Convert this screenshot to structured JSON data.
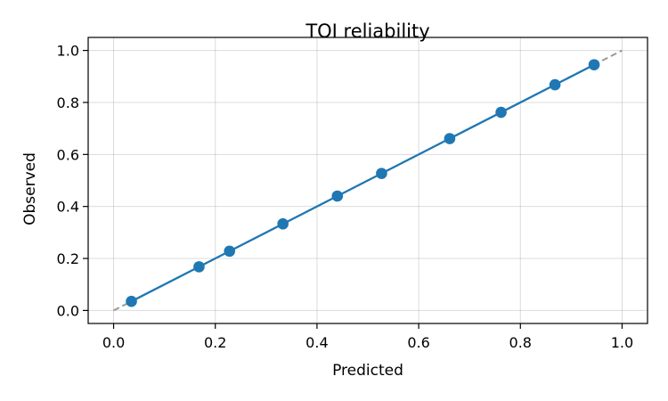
{
  "chart_data": {
    "type": "line",
    "title": "TOI reliability",
    "xlabel": "Predicted",
    "ylabel": "Observed",
    "xlim": [
      -0.05,
      1.05
    ],
    "ylim": [
      -0.05,
      1.05
    ],
    "xticks": [
      0.0,
      0.2,
      0.4,
      0.6,
      0.8,
      1.0
    ],
    "yticks": [
      0.0,
      0.2,
      0.4,
      0.6,
      0.8,
      1.0
    ],
    "xtick_labels": [
      "0.0",
      "0.2",
      "0.4",
      "0.6",
      "0.8",
      "1.0"
    ],
    "ytick_labels": [
      "0.0",
      "0.2",
      "0.4",
      "0.6",
      "0.8",
      "1.0"
    ],
    "grid": true,
    "reference_line": {
      "x": [
        0,
        1
      ],
      "y": [
        0,
        1
      ],
      "style": "dashed",
      "color": "#999999"
    },
    "series": [
      {
        "color": "#1f77b4",
        "marker": "circle",
        "x": [
          0.035,
          0.168,
          0.228,
          0.333,
          0.44,
          0.527,
          0.661,
          0.762,
          0.868,
          0.945
        ],
        "y": [
          0.035,
          0.168,
          0.228,
          0.333,
          0.44,
          0.527,
          0.661,
          0.762,
          0.868,
          0.945
        ]
      }
    ]
  }
}
